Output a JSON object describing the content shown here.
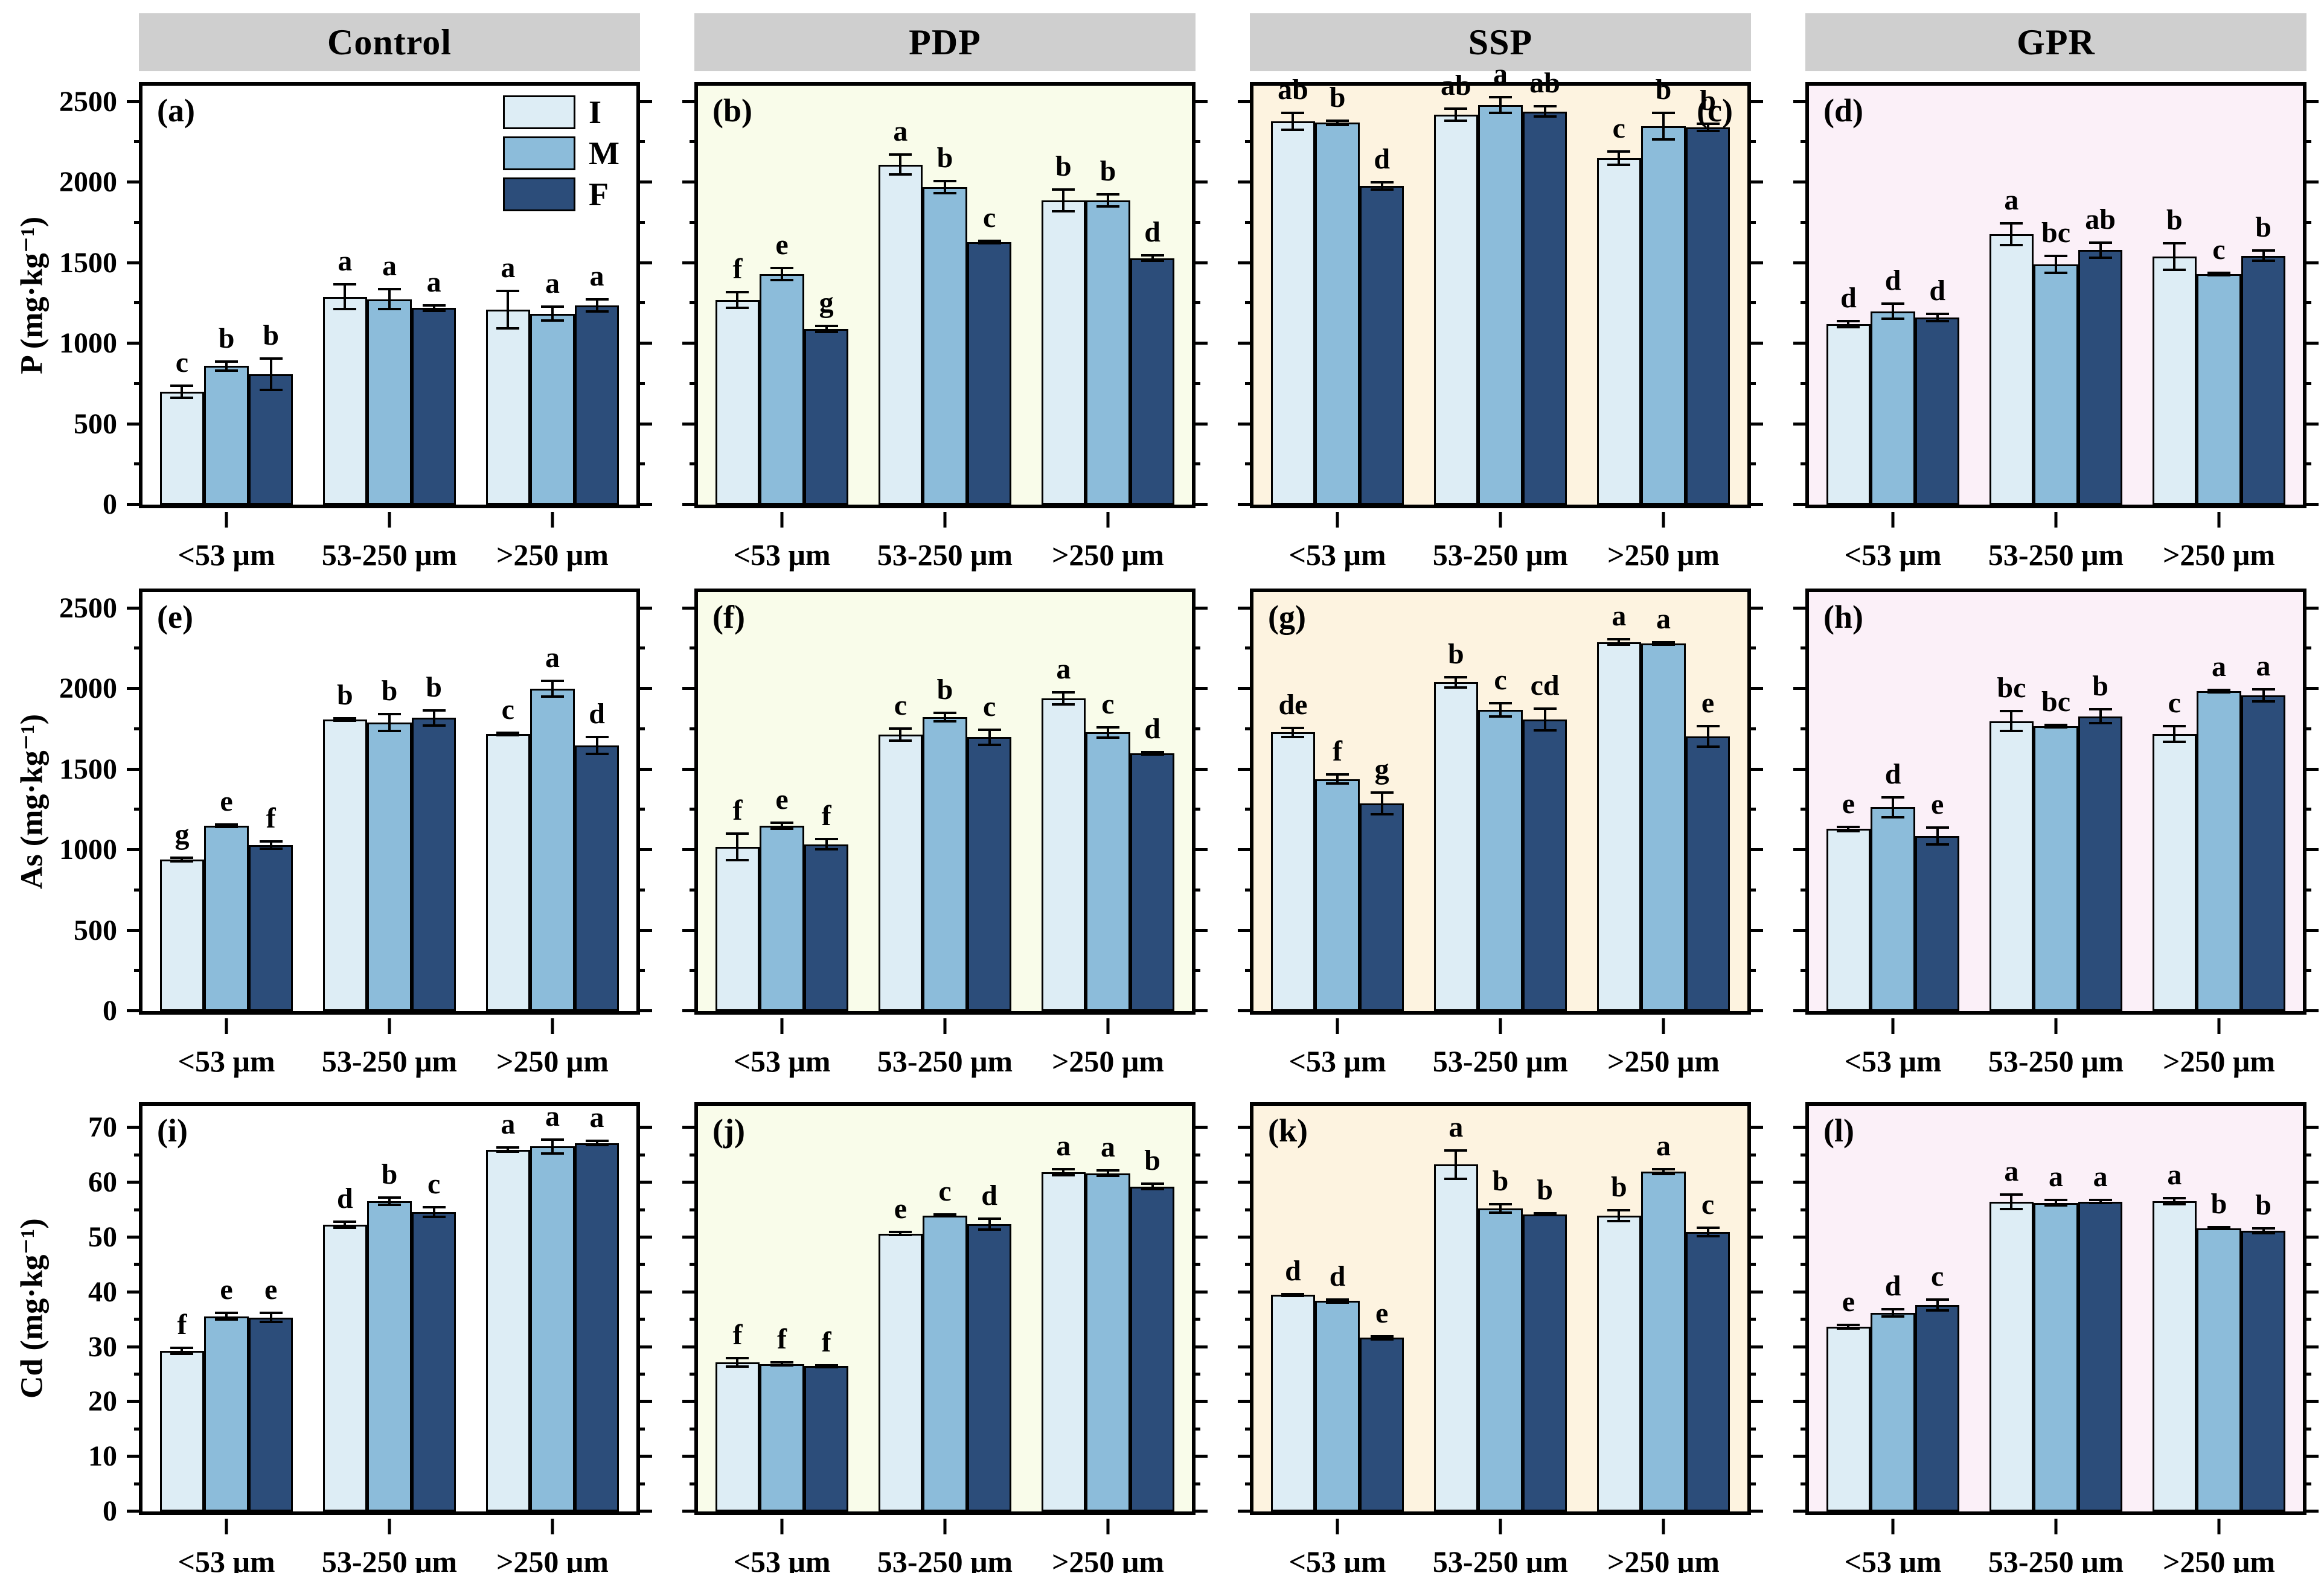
{
  "figure_type": "grouped-bar-grid",
  "layout": {
    "header_bg": "#cfcfcf",
    "columns": [
      {
        "key": "Control",
        "header": "Control",
        "bg": "#ffffff"
      },
      {
        "key": "PDP",
        "header": "PDP",
        "bg": "#f9fcea"
      },
      {
        "key": "SSP",
        "header": "SSP",
        "bg": "#fdf3e0"
      },
      {
        "key": "GPR",
        "header": "GPR",
        "bg": "#fbf0f8"
      }
    ],
    "rows": [
      {
        "axis_label": "P (mg·kg⁻¹)",
        "ylim": [
          0,
          2600
        ],
        "major_ticks": [
          0,
          500,
          1000,
          1500,
          2000,
          2500
        ],
        "minor_ticks": [
          250,
          750,
          1250,
          1750,
          2250
        ],
        "tick_labels": [
          "0",
          "500",
          "1000",
          "1500",
          "2000",
          "2500"
        ]
      },
      {
        "axis_label": "As (mg·kg⁻¹)",
        "ylim": [
          0,
          2600
        ],
        "major_ticks": [
          0,
          500,
          1000,
          1500,
          2000,
          2500
        ],
        "minor_ticks": [
          250,
          750,
          1250,
          1750,
          2250
        ],
        "tick_labels": [
          "0",
          "500",
          "1000",
          "1500",
          "2000",
          "2500"
        ]
      },
      {
        "axis_label": "Cd (mg·kg⁻¹)",
        "ylim": [
          0,
          74
        ],
        "major_ticks": [
          0,
          10,
          20,
          30,
          40,
          50,
          60,
          70
        ],
        "minor_ticks": [
          5,
          15,
          25,
          35,
          45,
          55,
          65
        ],
        "tick_labels": [
          "0",
          "10",
          "20",
          "30",
          "40",
          "50",
          "60",
          "70"
        ]
      }
    ],
    "categories": [
      "<53 μm",
      "53-250 μm",
      ">250 μm"
    ],
    "legend": {
      "items": [
        {
          "label": "I",
          "color": "#ddedf5"
        },
        {
          "label": "M",
          "color": "#8cbcda"
        },
        {
          "label": "F",
          "color": "#2c4d7a"
        }
      ],
      "shown_in_panel": "(a)"
    },
    "series_colors": {
      "I": "#ddedf5",
      "M": "#8cbcda",
      "F": "#2c4d7a"
    },
    "bar_border_color": "#000000"
  },
  "chart_data": [
    {
      "type": "bar",
      "panel_label": "(a)",
      "label_pos": "tl",
      "row": 0,
      "col": 0,
      "treatment": "Control",
      "analyte": "P (mg·kg⁻¹)",
      "ylim": [
        0,
        2600
      ],
      "categories": [
        "<53 μm",
        "53-250 μm",
        ">250 μm"
      ],
      "has_legend": true,
      "series": [
        {
          "name": "I",
          "values": [
            700,
            1290,
            1210
          ],
          "errors": [
            45,
            85,
            125
          ],
          "letters": [
            "c",
            "a",
            "a"
          ]
        },
        {
          "name": "M",
          "values": [
            860,
            1275,
            1185
          ],
          "errors": [
            35,
            70,
            50
          ],
          "letters": [
            "b",
            "a",
            "a"
          ]
        },
        {
          "name": "F",
          "values": [
            810,
            1220,
            1235
          ],
          "errors": [
            105,
            25,
            45
          ],
          "letters": [
            "b",
            "a",
            "a"
          ]
        }
      ]
    },
    {
      "type": "bar",
      "panel_label": "(b)",
      "label_pos": "tl",
      "row": 0,
      "col": 1,
      "treatment": "PDP",
      "analyte": "P (mg·kg⁻¹)",
      "ylim": [
        0,
        2600
      ],
      "categories": [
        "<53 μm",
        "53-250 μm",
        ">250 μm"
      ],
      "has_legend": false,
      "series": [
        {
          "name": "I",
          "values": [
            1270,
            2110,
            1890
          ],
          "errors": [
            55,
            70,
            75
          ],
          "letters": [
            "f",
            "a",
            "b"
          ]
        },
        {
          "name": "M",
          "values": [
            1430,
            1970,
            1890
          ],
          "errors": [
            45,
            45,
            45
          ],
          "letters": [
            "e",
            "b",
            "b"
          ]
        },
        {
          "name": "F",
          "values": [
            1090,
            1630,
            1530
          ],
          "errors": [
            25,
            15,
            25
          ],
          "letters": [
            "g",
            "c",
            "d"
          ]
        }
      ]
    },
    {
      "type": "bar",
      "panel_label": "(c)",
      "label_pos": "tr",
      "row": 0,
      "col": 2,
      "treatment": "SSP",
      "analyte": "P (mg·kg⁻¹)",
      "ylim": [
        0,
        2600
      ],
      "categories": [
        "<53 μm",
        "53-250 μm",
        ">250 μm"
      ],
      "has_legend": false,
      "series": [
        {
          "name": "I",
          "values": [
            2380,
            2420,
            2150
          ],
          "errors": [
            60,
            45,
            50
          ],
          "letters": [
            "ab",
            "ab",
            "c"
          ]
        },
        {
          "name": "M",
          "values": [
            2370,
            2480,
            2350
          ],
          "errors": [
            20,
            55,
            90
          ],
          "letters": [
            "b",
            "a",
            "b"
          ]
        },
        {
          "name": "F",
          "values": [
            1980,
            2440,
            2340
          ],
          "errors": [
            30,
            40,
            30
          ],
          "letters": [
            "d",
            "ab",
            "b"
          ]
        }
      ]
    },
    {
      "type": "bar",
      "panel_label": "(d)",
      "label_pos": "tl",
      "row": 0,
      "col": 3,
      "treatment": "GPR",
      "analyte": "P (mg·kg⁻¹)",
      "ylim": [
        0,
        2600
      ],
      "categories": [
        "<53 μm",
        "53-250 μm",
        ">250 μm"
      ],
      "has_legend": false,
      "series": [
        {
          "name": "I",
          "values": [
            1120,
            1680,
            1540
          ],
          "errors": [
            25,
            75,
            90
          ],
          "letters": [
            "d",
            "a",
            "b"
          ]
        },
        {
          "name": "M",
          "values": [
            1200,
            1490,
            1430
          ],
          "errors": [
            55,
            60,
            15
          ],
          "letters": [
            "d",
            "bc",
            "c"
          ]
        },
        {
          "name": "F",
          "values": [
            1160,
            1580,
            1545
          ],
          "errors": [
            30,
            55,
            40
          ],
          "letters": [
            "d",
            "ab",
            "b"
          ]
        }
      ]
    },
    {
      "type": "bar",
      "panel_label": "(e)",
      "label_pos": "tl",
      "row": 1,
      "col": 0,
      "treatment": "Control",
      "analyte": "As (mg·kg⁻¹)",
      "ylim": [
        0,
        2600
      ],
      "categories": [
        "<53 μm",
        "53-250 μm",
        ">250 μm"
      ],
      "has_legend": false,
      "series": [
        {
          "name": "I",
          "values": [
            940,
            1810,
            1720
          ],
          "errors": [
            20,
            15,
            15
          ],
          "letters": [
            "g",
            "b",
            "c"
          ]
        },
        {
          "name": "M",
          "values": [
            1150,
            1790,
            2000
          ],
          "errors": [
            15,
            60,
            55
          ],
          "letters": [
            "e",
            "b",
            "a"
          ]
        },
        {
          "name": "F",
          "values": [
            1030,
            1820,
            1650
          ],
          "errors": [
            30,
            55,
            60
          ],
          "letters": [
            "f",
            "b",
            "d"
          ]
        }
      ]
    },
    {
      "type": "bar",
      "panel_label": "(f)",
      "label_pos": "tl",
      "row": 1,
      "col": 1,
      "treatment": "PDP",
      "analyte": "As (mg·kg⁻¹)",
      "ylim": [
        0,
        2600
      ],
      "categories": [
        "<53 μm",
        "53-250 μm",
        ">250 μm"
      ],
      "has_legend": false,
      "series": [
        {
          "name": "I",
          "values": [
            1020,
            1715,
            1940
          ],
          "errors": [
            90,
            45,
            45
          ],
          "letters": [
            "f",
            "c",
            "a"
          ]
        },
        {
          "name": "M",
          "values": [
            1150,
            1825,
            1730
          ],
          "errors": [
            25,
            35,
            40
          ],
          "letters": [
            "e",
            "b",
            "c"
          ]
        },
        {
          "name": "F",
          "values": [
            1035,
            1700,
            1600
          ],
          "errors": [
            40,
            55,
            15
          ],
          "letters": [
            "f",
            "c",
            "d"
          ]
        }
      ]
    },
    {
      "type": "bar",
      "panel_label": "(g)",
      "label_pos": "tl",
      "row": 1,
      "col": 2,
      "treatment": "SSP",
      "analyte": "As (mg·kg⁻¹)",
      "ylim": [
        0,
        2600
      ],
      "categories": [
        "<53 μm",
        "53-250 μm",
        ">250 μm"
      ],
      "has_legend": false,
      "series": [
        {
          "name": "I",
          "values": [
            1730,
            2040,
            2290
          ],
          "errors": [
            35,
            40,
            25
          ],
          "letters": [
            "de",
            "b",
            "a"
          ]
        },
        {
          "name": "M",
          "values": [
            1440,
            1870,
            2280
          ],
          "errors": [
            35,
            50,
            15
          ],
          "letters": [
            "f",
            "c",
            "a"
          ]
        },
        {
          "name": "F",
          "values": [
            1290,
            1810,
            1705
          ],
          "errors": [
            75,
            75,
            70
          ],
          "letters": [
            "g",
            "cd",
            "e"
          ]
        }
      ]
    },
    {
      "type": "bar",
      "panel_label": "(h)",
      "label_pos": "tl",
      "row": 1,
      "col": 3,
      "treatment": "GPR",
      "analyte": "As (mg·kg⁻¹)",
      "ylim": [
        0,
        2600
      ],
      "categories": [
        "<53 μm",
        "53-250 μm",
        ">250 μm"
      ],
      "has_legend": false,
      "series": [
        {
          "name": "I",
          "values": [
            1130,
            1800,
            1720
          ],
          "errors": [
            20,
            70,
            55
          ],
          "letters": [
            "e",
            "bc",
            "c"
          ]
        },
        {
          "name": "M",
          "values": [
            1265,
            1770,
            1985
          ],
          "errors": [
            70,
            15,
            15
          ],
          "letters": [
            "d",
            "bc",
            "a"
          ]
        },
        {
          "name": "F",
          "values": [
            1085,
            1830,
            1960
          ],
          "errors": [
            60,
            50,
            45
          ],
          "letters": [
            "e",
            "b",
            "a"
          ]
        }
      ]
    },
    {
      "type": "bar",
      "panel_label": "(i)",
      "label_pos": "tl",
      "row": 2,
      "col": 0,
      "treatment": "Control",
      "analyte": "Cd (mg·kg⁻¹)",
      "ylim": [
        0,
        74
      ],
      "categories": [
        "<53 μm",
        "53-250 μm",
        ">250 μm"
      ],
      "has_legend": false,
      "series": [
        {
          "name": "I",
          "values": [
            29.3,
            52.3,
            66.0
          ],
          "errors": [
            0.8,
            0.8,
            0.6
          ],
          "letters": [
            "f",
            "d",
            "a"
          ]
        },
        {
          "name": "M",
          "values": [
            35.6,
            56.6,
            66.6
          ],
          "errors": [
            0.8,
            0.9,
            1.5
          ],
          "letters": [
            "e",
            "b",
            "a"
          ]
        },
        {
          "name": "F",
          "values": [
            35.4,
            54.6,
            67.2
          ],
          "errors": [
            1.0,
            1.1,
            0.6
          ],
          "letters": [
            "e",
            "c",
            "a"
          ]
        }
      ]
    },
    {
      "type": "bar",
      "panel_label": "(j)",
      "label_pos": "tl",
      "row": 2,
      "col": 1,
      "treatment": "PDP",
      "analyte": "Cd (mg·kg⁻¹)",
      "ylim": [
        0,
        74
      ],
      "categories": [
        "<53 μm",
        "53-250 μm",
        ">250 μm"
      ],
      "has_legend": false,
      "series": [
        {
          "name": "I",
          "values": [
            27.2,
            50.7,
            61.9
          ],
          "errors": [
            1.0,
            0.5,
            0.8
          ],
          "letters": [
            "f",
            "e",
            "a"
          ]
        },
        {
          "name": "M",
          "values": [
            26.9,
            54.0,
            61.7
          ],
          "errors": [
            0.5,
            0.4,
            0.7
          ],
          "letters": [
            "f",
            "c",
            "a"
          ]
        },
        {
          "name": "F",
          "values": [
            26.5,
            52.4,
            59.3
          ],
          "errors": [
            0.4,
            1.2,
            0.7
          ],
          "letters": [
            "f",
            "d",
            "b"
          ]
        }
      ]
    },
    {
      "type": "bar",
      "panel_label": "(k)",
      "label_pos": "tl",
      "row": 2,
      "col": 2,
      "treatment": "SSP",
      "analyte": "Cd (mg·kg⁻¹)",
      "ylim": [
        0,
        74
      ],
      "categories": [
        "<53 μm",
        "53-250 μm",
        ">250 μm"
      ],
      "has_legend": false,
      "series": [
        {
          "name": "I",
          "values": [
            39.5,
            63.3,
            54.0
          ],
          "errors": [
            0.4,
            2.8,
            1.2
          ],
          "letters": [
            "d",
            "a",
            "b"
          ]
        },
        {
          "name": "M",
          "values": [
            38.4,
            55.3,
            62.0
          ],
          "errors": [
            0.5,
            1.0,
            0.7
          ],
          "letters": [
            "d",
            "b",
            "a"
          ]
        },
        {
          "name": "F",
          "values": [
            31.7,
            54.2,
            51.0
          ],
          "errors": [
            0.5,
            0.4,
            1.0
          ],
          "letters": [
            "e",
            "b",
            "c"
          ]
        }
      ]
    },
    {
      "type": "bar",
      "panel_label": "(l)",
      "label_pos": "tl",
      "row": 2,
      "col": 3,
      "treatment": "GPR",
      "analyte": "Cd (mg·kg⁻¹)",
      "ylim": [
        0,
        74
      ],
      "categories": [
        "<53 μm",
        "53-250 μm",
        ">250 μm"
      ],
      "has_legend": false,
      "series": [
        {
          "name": "I",
          "values": [
            33.7,
            56.5,
            56.6
          ],
          "errors": [
            0.6,
            1.5,
            0.8
          ],
          "letters": [
            "e",
            "a",
            "a"
          ]
        },
        {
          "name": "M",
          "values": [
            36.2,
            56.3,
            51.7
          ],
          "errors": [
            0.9,
            0.7,
            0.4
          ],
          "letters": [
            "d",
            "a",
            "b"
          ]
        },
        {
          "name": "F",
          "values": [
            37.7,
            56.5,
            51.2
          ],
          "errors": [
            1.2,
            0.5,
            0.7
          ],
          "letters": [
            "c",
            "a",
            "b"
          ]
        }
      ]
    }
  ]
}
